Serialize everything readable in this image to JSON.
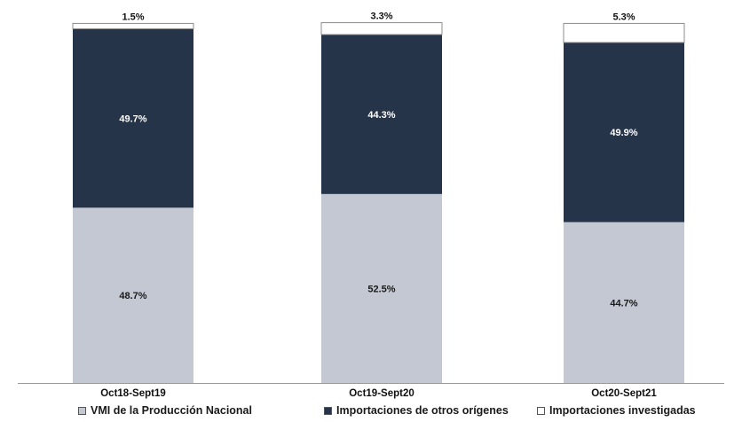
{
  "chart_data": {
    "type": "bar",
    "stacked": true,
    "categories": [
      "Oct18-Sept19",
      "Oct19-Sept20",
      "Oct20-Sept21"
    ],
    "series": [
      {
        "name": "VMI de la Producción Nacional",
        "values": [
          48.7,
          52.5,
          44.7
        ],
        "labels": [
          "48.7%",
          "52.5%",
          "44.7%"
        ],
        "color": "#c3c8d2"
      },
      {
        "name": "Importaciones de otros orígenes",
        "values": [
          49.7,
          44.3,
          49.9
        ],
        "labels": [
          "49.7%",
          "44.3%",
          "49.9%"
        ],
        "color": "#26344a"
      },
      {
        "name": "Importaciones investigadas",
        "values": [
          1.5,
          3.3,
          5.3
        ],
        "labels": [
          "1.5%",
          "3.3%",
          "5.3%"
        ],
        "color": "#ffffff"
      }
    ],
    "ylim": [
      0,
      100
    ],
    "grid": false,
    "legend_position": "bottom"
  }
}
